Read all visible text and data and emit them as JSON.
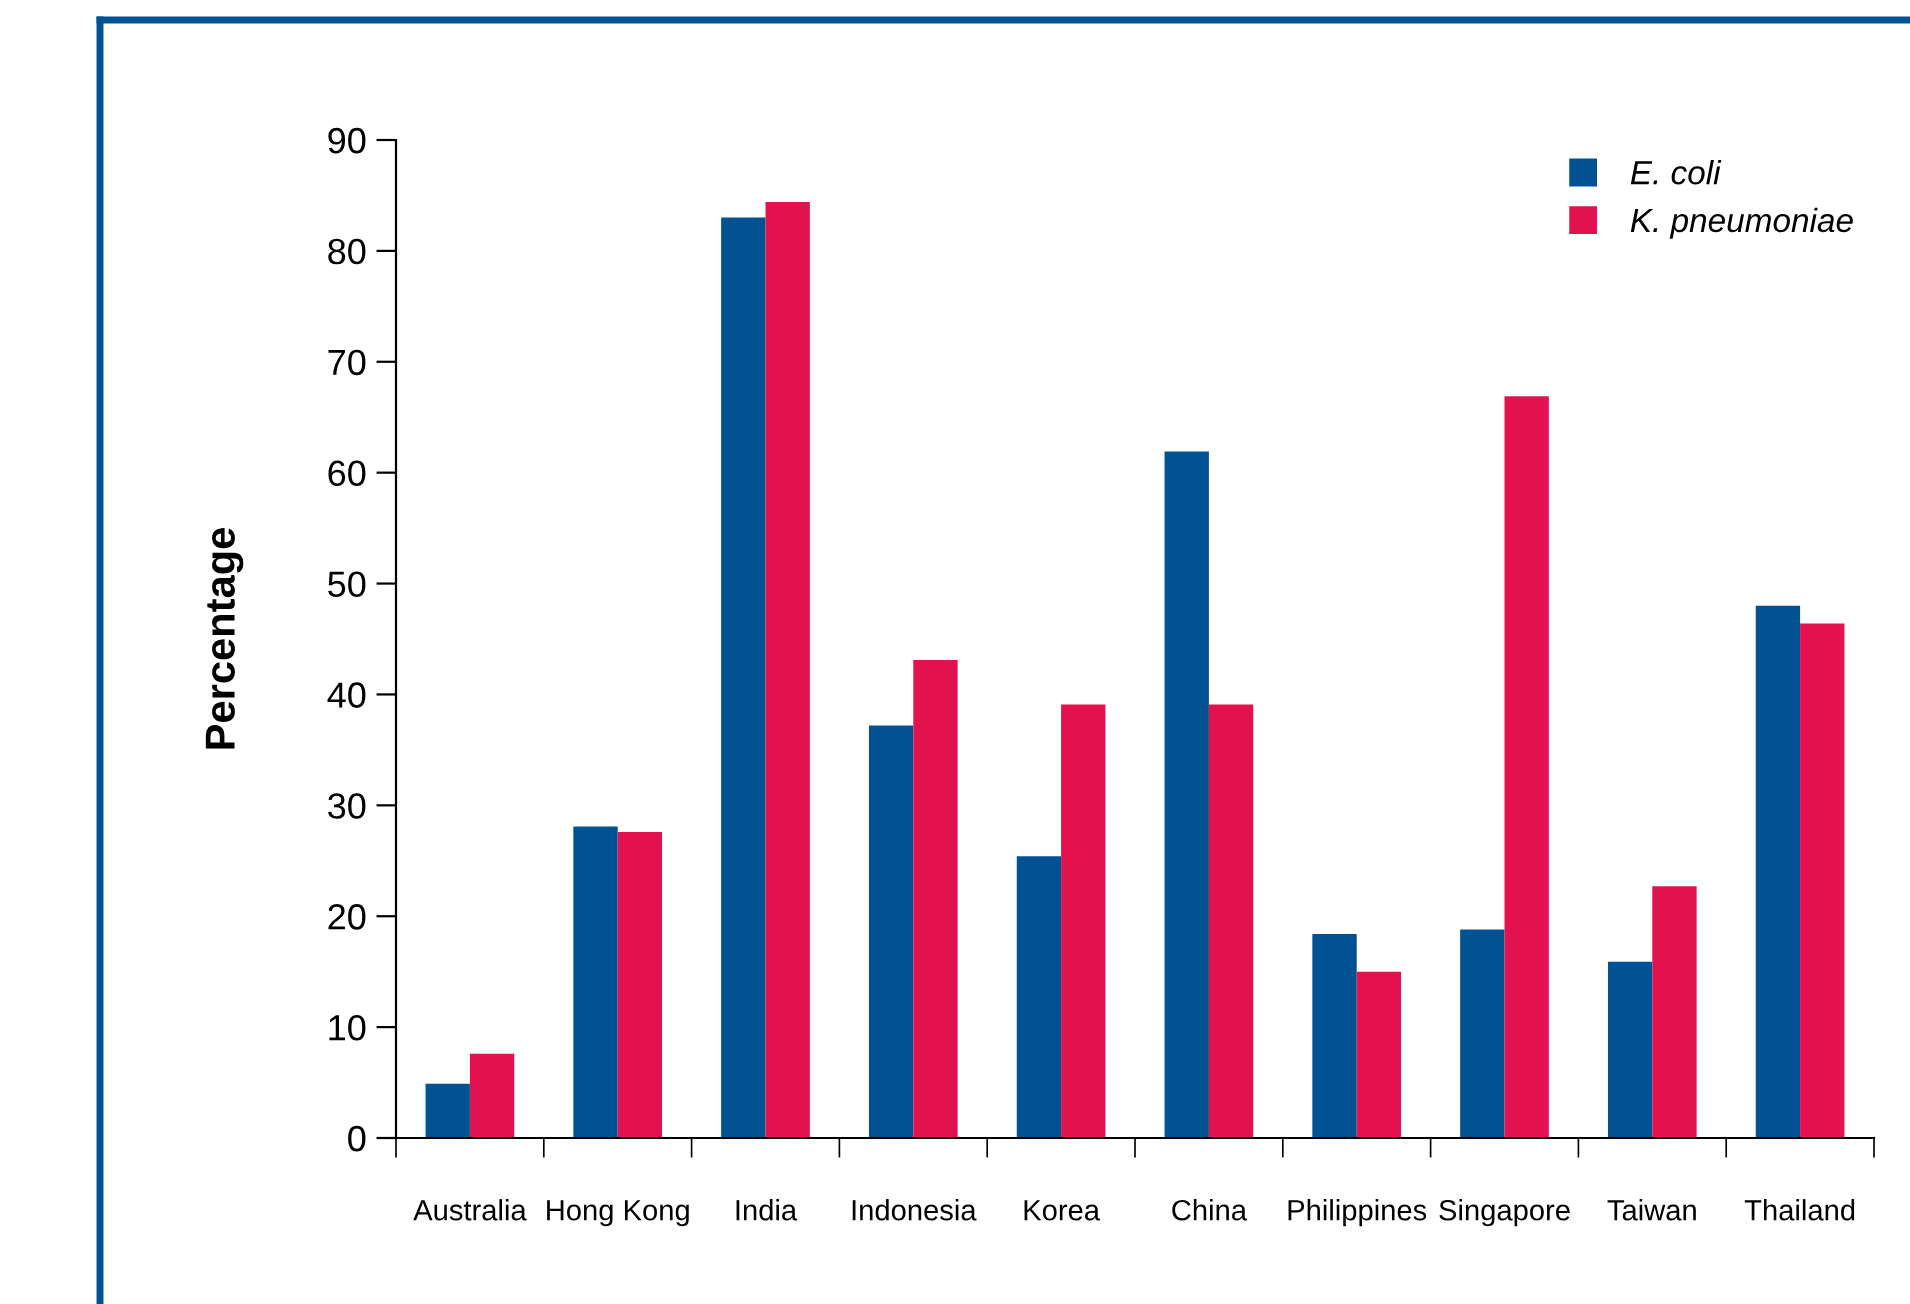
{
  "chart_data": {
    "type": "bar",
    "ylabel": "Percentage",
    "categories": [
      "Australia",
      "Hong Kong",
      "India",
      "Indonesia",
      "Korea",
      "China",
      "Philippines",
      "Singapore",
      "Taiwan",
      "Thailand"
    ],
    "series": [
      {
        "name": "E. coli",
        "color": "#005293",
        "values": [
          4.9,
          28.1,
          83,
          37.2,
          25.4,
          61.9,
          18.4,
          18.8,
          15.9,
          48
        ]
      },
      {
        "name": "K. pneumoniae",
        "color": "#e2124f",
        "values": [
          7.6,
          27.6,
          84.4,
          43.1,
          39.1,
          39.1,
          15,
          66.9,
          22.7,
          46.4
        ]
      }
    ],
    "ylim": [
      0,
      90
    ],
    "yticks": [
      0,
      10,
      20,
      30,
      40,
      50,
      60,
      70,
      80,
      90
    ],
    "grid": false,
    "legend": "top right"
  }
}
